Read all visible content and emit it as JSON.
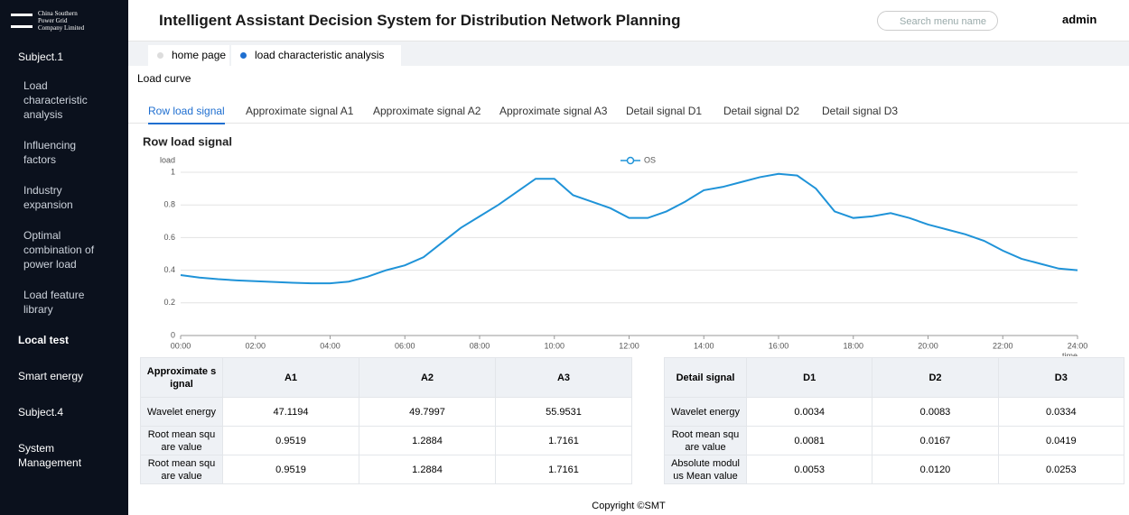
{
  "header": {
    "logo": "China Southern Power Grid Company Limited",
    "title": "Intelligent Assistant Decision System for Distribution Network Planning",
    "search_placeholder": "Search menu name",
    "user": "admin"
  },
  "sidebar": {
    "items": [
      "Subject.1",
      "Load characteristic analysis",
      "Influencing factors",
      "Industry expansion",
      "Optimal combination of power load",
      "Load feature library",
      "Local test",
      "Smart energy",
      "Subject.4",
      "System Management"
    ]
  },
  "tabs": [
    "home page",
    "load characteristic analysis"
  ],
  "panel": {
    "title": "Load curve",
    "subtabs": [
      "Row load signal",
      "Approximate signal A1",
      "Approximate signal A2",
      "Approximate signal A3",
      "Detail signal D1",
      "Detail signal D2",
      "Detail signal D3"
    ]
  },
  "chart_data": {
    "type": "line",
    "title": "Row load signal",
    "ylabel": "load",
    "xlabel": "time",
    "x": [
      0,
      0.5,
      1,
      1.5,
      2,
      2.5,
      3,
      3.5,
      4,
      4.5,
      5,
      5.5,
      6,
      6.5,
      7,
      7.5,
      8,
      8.5,
      9,
      9.5,
      10,
      10.5,
      11,
      11.5,
      12,
      12.5,
      13,
      13.5,
      14,
      14.5,
      15,
      15.5,
      16,
      16.5,
      17,
      17.5,
      18,
      18.5,
      19,
      19.5,
      20,
      20.5,
      21,
      21.5,
      22,
      22.5,
      23,
      23.5,
      24
    ],
    "series": [
      {
        "name": "OS",
        "color": "#1f93d8",
        "values": [
          0.37,
          0.355,
          0.345,
          0.338,
          0.333,
          0.328,
          0.323,
          0.32,
          0.32,
          0.33,
          0.36,
          0.4,
          0.43,
          0.48,
          0.57,
          0.66,
          0.73,
          0.8,
          0.88,
          0.96,
          0.96,
          0.86,
          0.82,
          0.78,
          0.72,
          0.72,
          0.76,
          0.82,
          0.89,
          0.91,
          0.94,
          0.97,
          0.99,
          0.98,
          0.9,
          0.76,
          0.72,
          0.73,
          0.75,
          0.72,
          0.68,
          0.65,
          0.62,
          0.58,
          0.52,
          0.47,
          0.44,
          0.41,
          0.4
        ]
      }
    ],
    "xlim": [
      0,
      24
    ],
    "xticks": [
      {
        "value": 0,
        "label": "00:00"
      },
      {
        "value": 2,
        "label": "02:00"
      },
      {
        "value": 4,
        "label": "04:00"
      },
      {
        "value": 6,
        "label": "06:00"
      },
      {
        "value": 8,
        "label": "08:00"
      },
      {
        "value": 10,
        "label": "10:00"
      },
      {
        "value": 12,
        "label": "12:00"
      },
      {
        "value": 14,
        "label": "14:00"
      },
      {
        "value": 16,
        "label": "16:00"
      },
      {
        "value": 18,
        "label": "18:00"
      },
      {
        "value": 20,
        "label": "20:00"
      },
      {
        "value": 22,
        "label": "22:00"
      },
      {
        "value": 24,
        "label": "24:00"
      }
    ],
    "ylim": [
      0,
      1
    ],
    "yticks": [
      0,
      0.2,
      0.4,
      0.6,
      0.8,
      1
    ],
    "grid": true
  },
  "tables": [
    {
      "header": [
        "Approximate signal",
        "A1",
        "A2",
        "A3"
      ],
      "rows": [
        [
          "Wavelet energy",
          "47.1194",
          "49.7997",
          "55.9531"
        ],
        [
          "Root mean square value",
          "0.9519",
          "1.2884",
          "1.7161"
        ],
        [
          "Root mean square value",
          "0.9519",
          "1.2884",
          "1.7161"
        ]
      ]
    },
    {
      "header": [
        "Detail signal",
        "D1",
        "D2",
        "D3"
      ],
      "rows": [
        [
          "Wavelet energy",
          "0.0034",
          "0.0083",
          "0.0334"
        ],
        [
          "Root mean square value",
          "0.0081",
          "0.0167",
          "0.0419"
        ],
        [
          "Absolute modulus Mean value",
          "0.0053",
          "0.0120",
          "0.0253"
        ]
      ]
    }
  ],
  "footer": "Copyright ©SMT"
}
